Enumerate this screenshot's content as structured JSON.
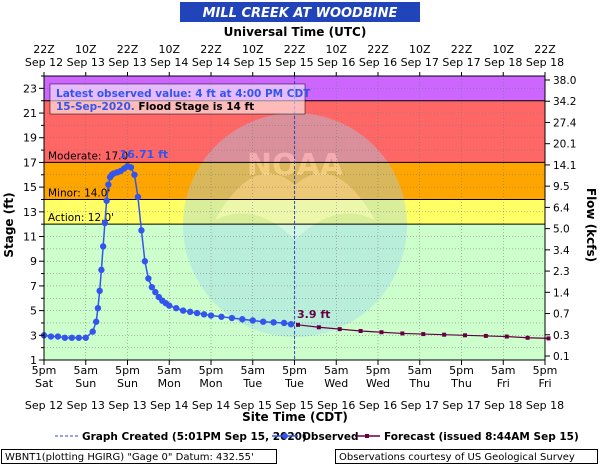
{
  "chart_data": {
    "type": "line",
    "title": "MILL CREEK AT WOODBINE",
    "top_axis_title": "Universal Time (UTC)",
    "xlabel": "Site Time (CDT)",
    "ylabel": "Stage (ft)",
    "ylabel_right": "Flow (kcfs)",
    "ylim": [
      1,
      24
    ],
    "yticks": [
      1,
      3,
      5,
      7,
      9,
      11,
      13,
      15,
      17,
      19,
      21,
      23
    ],
    "yticks_minor": [
      2,
      4,
      6,
      8,
      10,
      12,
      14,
      16,
      18,
      20,
      22,
      24
    ],
    "flow_ticks": [
      {
        "stage": 3,
        "label": "0.1"
      },
      {
        "stage": 5,
        "label": "0.3"
      },
      {
        "stage": 7,
        "label": "0.7"
      },
      {
        "stage": 9,
        "label": "1.4"
      },
      {
        "stage": 11,
        "label": "2.3"
      },
      {
        "stage": 13,
        "label": "3.4"
      },
      {
        "stage": 15,
        "label": "5.0"
      },
      {
        "stage": 17,
        "label": "6.4"
      },
      {
        "stage": 19,
        "label": "9.5"
      },
      {
        "stage": 21,
        "label": "14.1"
      },
      {
        "stage": 23,
        "label": "20.1"
      },
      {
        "stage": 25,
        "label": "27.4"
      },
      {
        "stage": 27,
        "label": "34.2"
      },
      {
        "stage": 29,
        "label": "38.0"
      }
    ],
    "bottom_ticks": [
      {
        "time": "5pm",
        "day": "Sat",
        "date": "Sep 12"
      },
      {
        "time": "5am",
        "day": "Sun",
        "date": "Sep 13"
      },
      {
        "time": "5pm",
        "day": "Sun",
        "date": "Sep 13"
      },
      {
        "time": "5am",
        "day": "Mon",
        "date": "Sep 14"
      },
      {
        "time": "5pm",
        "day": "Mon",
        "date": "Sep 14"
      },
      {
        "time": "5am",
        "day": "Tue",
        "date": "Sep 15"
      },
      {
        "time": "5pm",
        "day": "Tue",
        "date": "Sep 15"
      },
      {
        "time": "5am",
        "day": "Wed",
        "date": "Sep 16"
      },
      {
        "time": "5pm",
        "day": "Wed",
        "date": "Sep 16"
      },
      {
        "time": "5am",
        "day": "Thu",
        "date": "Sep 17"
      },
      {
        "time": "5pm",
        "day": "Thu",
        "date": "Sep 17"
      },
      {
        "time": "5am",
        "day": "Fri",
        "date": "Sep 18"
      },
      {
        "time": "5pm",
        "day": "Fri",
        "date": "Sep 18"
      }
    ],
    "top_ticks": [
      {
        "time": "22Z",
        "date": "Sep 12"
      },
      {
        "time": "10Z",
        "date": "Sep 13"
      },
      {
        "time": "22Z",
        "date": "Sep 13"
      },
      {
        "time": "10Z",
        "date": "Sep 14"
      },
      {
        "time": "22Z",
        "date": "Sep 14"
      },
      {
        "time": "10Z",
        "date": "Sep 15"
      },
      {
        "time": "22Z",
        "date": "Sep 15"
      },
      {
        "time": "10Z",
        "date": "Sep 16"
      },
      {
        "time": "22Z",
        "date": "Sep 16"
      },
      {
        "time": "10Z",
        "date": "Sep 17"
      },
      {
        "time": "22Z",
        "date": "Sep 17"
      },
      {
        "time": "10Z",
        "date": "Sep 18"
      },
      {
        "time": "22Z",
        "date": "Sep 18"
      }
    ],
    "flood_categories": [
      {
        "name": "Action",
        "label": "Action: 12.0'",
        "stage": 12.0,
        "color": "#ffff66"
      },
      {
        "name": "Minor",
        "label": "Minor: 14.0'",
        "stage": 14.0,
        "color": "#ffa500"
      },
      {
        "name": "Moderate",
        "label": "Moderate: 17.0'",
        "stage": 17.0,
        "color": "#ff6666"
      },
      {
        "name": "Major",
        "label": "",
        "stage": 22.0,
        "color": "#cc66ff"
      }
    ],
    "below_action_color": "#ccffcc",
    "created_marker_label": "Graph Created (5:01PM Sep 15, 2020)",
    "series": [
      {
        "name": "Observed",
        "color": "#3355ee",
        "x": [
          "Sep 12 17:00",
          "Sep 12 19:00",
          "Sep 12 21:00",
          "Sep 12 23:00",
          "Sep 13 01:00",
          "Sep 13 03:00",
          "Sep 13 05:00",
          "Sep 13 07:00",
          "Sep 13 08:00",
          "Sep 13 08:30",
          "Sep 13 09:00",
          "Sep 13 09:30",
          "Sep 13 10:00",
          "Sep 13 10:30",
          "Sep 13 11:00",
          "Sep 13 11:30",
          "Sep 13 12:00",
          "Sep 13 12:30",
          "Sep 13 13:00",
          "Sep 13 14:00",
          "Sep 13 15:00",
          "Sep 13 16:00",
          "Sep 13 17:00",
          "Sep 13 18:00",
          "Sep 13 19:00",
          "Sep 13 20:00",
          "Sep 13 21:00",
          "Sep 13 22:00",
          "Sep 13 23:00",
          "Sep 14 00:00",
          "Sep 14 01:00",
          "Sep 14 02:00",
          "Sep 14 03:00",
          "Sep 14 04:00",
          "Sep 14 05:00",
          "Sep 14 07:00",
          "Sep 14 09:00",
          "Sep 14 11:00",
          "Sep 14 13:00",
          "Sep 14 15:00",
          "Sep 14 17:00",
          "Sep 14 20:00",
          "Sep 14 23:00",
          "Sep 15 02:00",
          "Sep 15 05:00",
          "Sep 15 08:00",
          "Sep 15 11:00",
          "Sep 15 14:00",
          "Sep 15 16:00"
        ],
        "values": [
          3.0,
          2.9,
          2.9,
          2.8,
          2.8,
          2.8,
          2.8,
          3.3,
          4.1,
          5.2,
          6.6,
          8.3,
          10.2,
          12.1,
          13.9,
          15.2,
          15.8,
          16.0,
          16.1,
          16.2,
          16.3,
          16.5,
          16.7,
          16.6,
          16.0,
          14.2,
          11.5,
          9.0,
          7.6,
          6.9,
          6.5,
          6.1,
          5.8,
          5.6,
          5.4,
          5.2,
          5.0,
          4.9,
          4.8,
          4.7,
          4.6,
          4.5,
          4.4,
          4.3,
          4.2,
          4.1,
          4.05,
          4.0,
          3.9
        ]
      },
      {
        "name": "Forecast (issued 8:44AM Sep 15)",
        "color": "#660044",
        "x": [
          "Sep 15 18:00",
          "Sep 16 00:00",
          "Sep 16 06:00",
          "Sep 16 12:00",
          "Sep 16 18:00",
          "Sep 17 00:00",
          "Sep 17 06:00",
          "Sep 17 12:00",
          "Sep 17 18:00",
          "Sep 18 00:00",
          "Sep 18 06:00",
          "Sep 18 12:00",
          "Sep 18 18:00"
        ],
        "values": [
          3.85,
          3.65,
          3.5,
          3.35,
          3.25,
          3.15,
          3.1,
          3.05,
          3.0,
          2.95,
          2.9,
          2.8,
          2.75
        ]
      }
    ],
    "annotations": {
      "peak_label": "16.71 ft",
      "latest_label": "3.9 ft",
      "moderate_inline": "Moderate: 17.0'"
    },
    "info_box": {
      "line1": "Latest observed value: 4 ft at 4:00 PM CDT",
      "line2_date": "15-Sep-2020.",
      "line2_rest": " Flood Stage is 14 ft"
    },
    "watermark_text": "NATIONAL OCEANIC AND ATMOSPHERIC ADMINISTRATION · U.S. DEPARTMENT OF COMMERCE",
    "watermark_logo": "NOAA"
  },
  "legend": {
    "created": "Graph Created (5:01PM Sep 15, 2020)",
    "observed": "Observed",
    "forecast": "Forecast (issued 8:44AM Sep 15)"
  },
  "footer": {
    "left": "WBNT1(plotting HGIRG) \"Gage 0\" Datum: 432.55'",
    "right": "Observations courtesy of US Geological Survey"
  }
}
